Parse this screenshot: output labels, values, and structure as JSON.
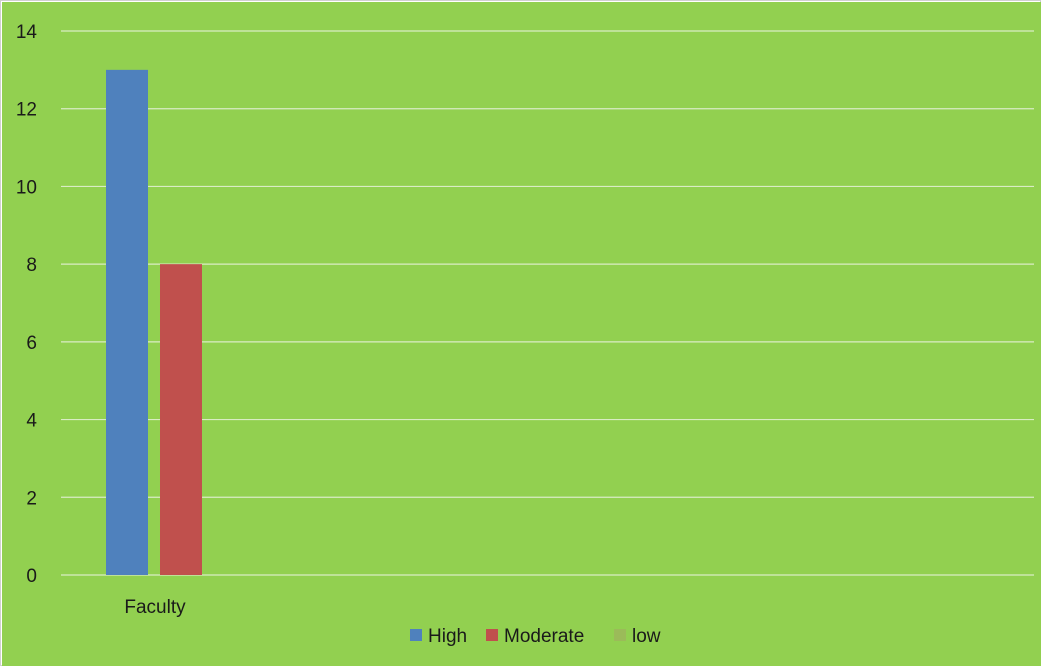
{
  "colors": {
    "background": "#92d050",
    "gridline": "#d9ecc4",
    "High": "#4f81bd",
    "Moderate": "#c0504d",
    "low": "#9bbb59"
  },
  "chart_data": {
    "type": "bar",
    "title": "",
    "xlabel": "",
    "ylabel": "",
    "categories": [
      "Faculty"
    ],
    "series": [
      {
        "name": "High",
        "values": [
          13
        ]
      },
      {
        "name": "Moderate",
        "values": [
          8
        ]
      },
      {
        "name": "low",
        "values": [
          0
        ]
      }
    ],
    "ylim": [
      0,
      14
    ],
    "yticks": [
      0,
      2,
      4,
      6,
      8,
      10,
      12,
      14
    ],
    "grid": true,
    "legend_position": "bottom"
  }
}
